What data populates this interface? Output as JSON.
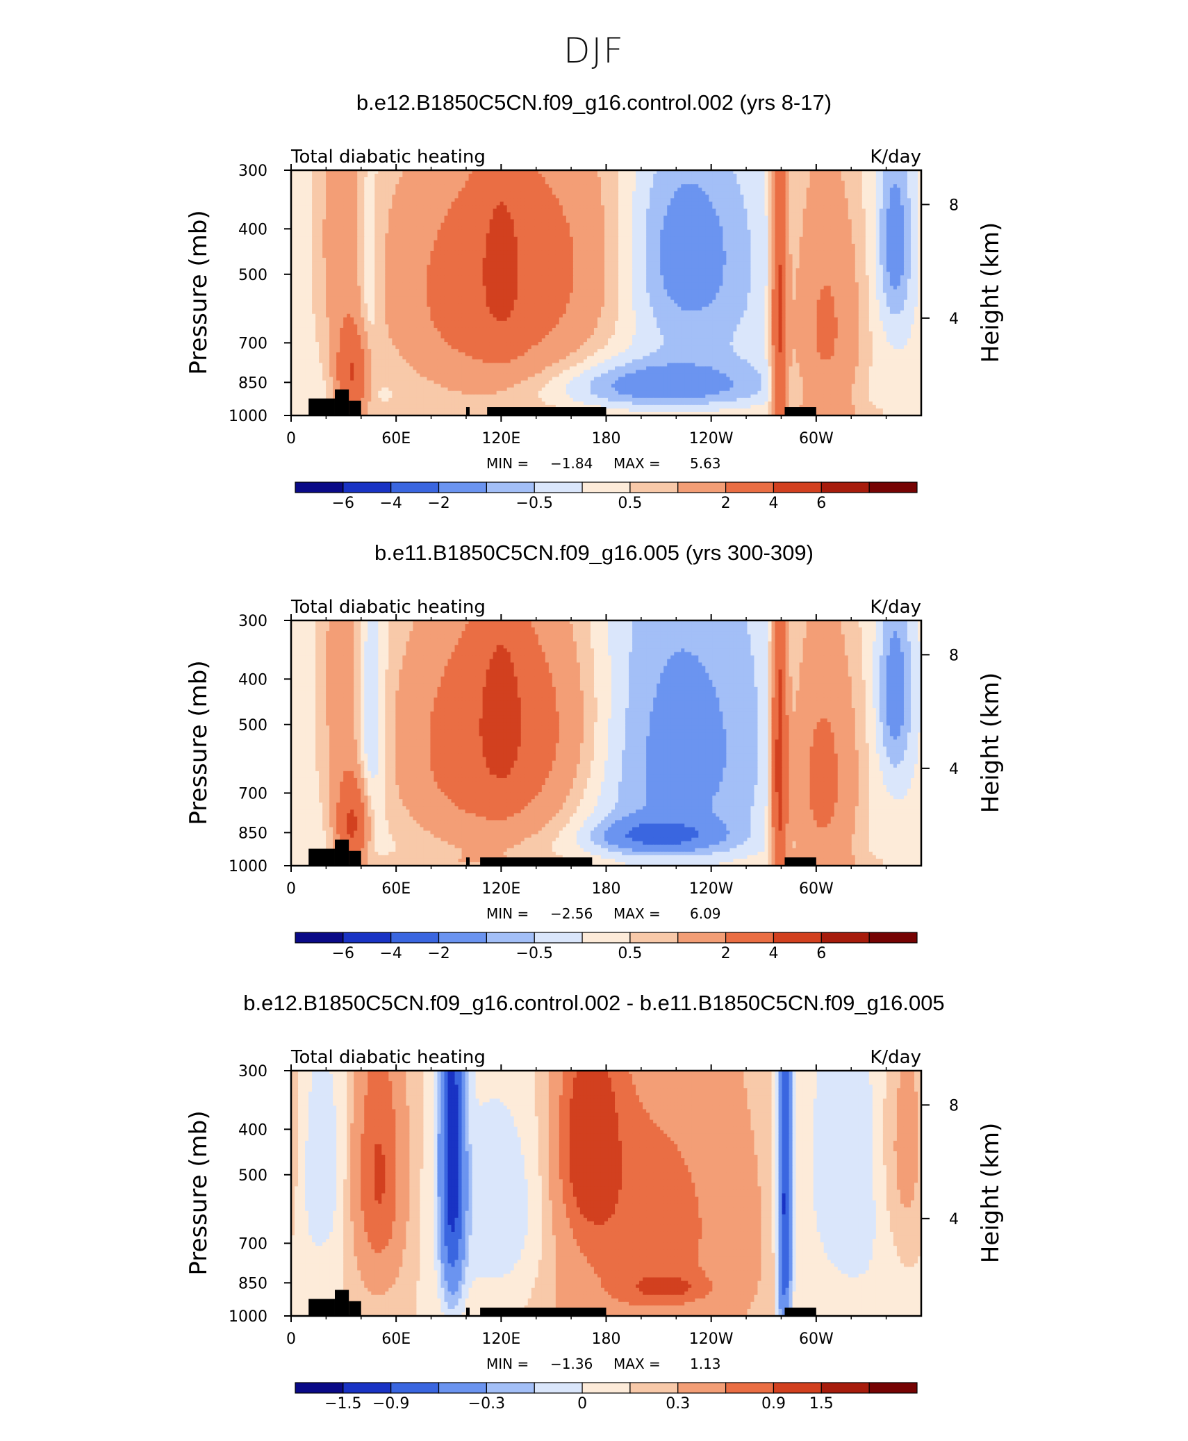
{
  "figure_title": "DJF",
  "chart_data": [
    {
      "type": "heatmap",
      "title": "b.e12.B1850C5CN.f09_g16.control.002 (yrs 8-17)",
      "variable": "Total diabatic heating",
      "units": "K/day",
      "ylabel": "Pressure (mb)",
      "y2label": "Height (km)",
      "x_ticks": [
        "0",
        "60E",
        "120E",
        "180",
        "120W",
        "60W"
      ],
      "y_ticks": [
        "300",
        "400",
        "500",
        "700",
        "850",
        "1000"
      ],
      "y2_ticks": [
        "8",
        "4"
      ],
      "min_label": "MIN =",
      "min_value": "−1.84",
      "max_label": "MAX =",
      "max_value": "5.63",
      "colorbar_labels": [
        "−6",
        "−4",
        "−2",
        "−0.5",
        "0.5",
        "2",
        "4",
        "6"
      ],
      "fields": [
        {
          "lon": 30,
          "p": 380,
          "sx": 10,
          "sy": 300,
          "v": 1.2
        },
        {
          "lon": 35,
          "p": 820,
          "sx": 6,
          "sy": 120,
          "v": 3.5
        },
        {
          "lon": 44,
          "p": 500,
          "sx": 5,
          "sy": 200,
          "v": -1.0
        },
        {
          "lon": 130,
          "p": 470,
          "sx": 50,
          "sy": 220,
          "v": 2.6
        },
        {
          "lon": 120,
          "p": 470,
          "sx": 8,
          "sy": 140,
          "v": 2.2
        },
        {
          "lon": 110,
          "p": 700,
          "sx": 35,
          "sy": 200,
          "v": 1.0
        },
        {
          "lon": 222,
          "p": 440,
          "sx": 25,
          "sy": 160,
          "v": -1.5
        },
        {
          "lon": 210,
          "p": 860,
          "sx": 40,
          "sy": 70,
          "v": -1.4
        },
        {
          "lon": 213,
          "p": 620,
          "sx": 60,
          "sy": 300,
          "v": -0.6
        },
        {
          "lon": 279,
          "p": 600,
          "sx": 3,
          "sy": 400,
          "v": 4.0
        },
        {
          "lon": 305,
          "p": 650,
          "sx": 15,
          "sy": 300,
          "v": 2.2
        },
        {
          "lon": 345,
          "p": 430,
          "sx": 7,
          "sy": 140,
          "v": -1.6
        },
        {
          "lon": 180,
          "p": 990,
          "sx": 200,
          "sy": 40,
          "v": 0.4
        }
      ],
      "terrain": [
        {
          "lon0": 10,
          "lon1": 25,
          "p": 920
        },
        {
          "lon0": 25,
          "lon1": 33,
          "p": 880
        },
        {
          "lon0": 33,
          "lon1": 40,
          "p": 930
        },
        {
          "lon0": 100,
          "lon1": 102,
          "p": 960
        },
        {
          "lon0": 112,
          "lon1": 180,
          "p": 960
        },
        {
          "lon0": 282,
          "lon1": 300,
          "p": 960
        }
      ]
    },
    {
      "type": "heatmap",
      "title": "b.e11.B1850C5CN.f09_g16.005 (yrs 300-309)",
      "variable": "Total diabatic heating",
      "units": "K/day",
      "ylabel": "Pressure (mb)",
      "y2label": "Height (km)",
      "x_ticks": [
        "0",
        "60E",
        "120E",
        "180",
        "120W",
        "60W"
      ],
      "y_ticks": [
        "300",
        "400",
        "500",
        "700",
        "850",
        "1000"
      ],
      "y2_ticks": [
        "8",
        "4"
      ],
      "min_label": "MIN =",
      "min_value": "−2.56",
      "max_label": "MAX =",
      "max_value": "6.09",
      "colorbar_labels": [
        "−6",
        "−4",
        "−2",
        "−0.5",
        "0.5",
        "2",
        "4",
        "6"
      ],
      "fields": [
        {
          "lon": 30,
          "p": 380,
          "sx": 10,
          "sy": 300,
          "v": 1.2
        },
        {
          "lon": 35,
          "p": 820,
          "sx": 6,
          "sy": 120,
          "v": 3.8
        },
        {
          "lon": 45,
          "p": 500,
          "sx": 6,
          "sy": 220,
          "v": -1.4
        },
        {
          "lon": 125,
          "p": 480,
          "sx": 40,
          "sy": 220,
          "v": 2.8
        },
        {
          "lon": 120,
          "p": 470,
          "sx": 8,
          "sy": 140,
          "v": 2.4
        },
        {
          "lon": 110,
          "p": 700,
          "sx": 35,
          "sy": 200,
          "v": 1.0
        },
        {
          "lon": 213,
          "p": 560,
          "sx": 45,
          "sy": 330,
          "v": -1.6
        },
        {
          "lon": 210,
          "p": 860,
          "sx": 22,
          "sy": 45,
          "v": -2.0
        },
        {
          "lon": 279,
          "p": 600,
          "sx": 3,
          "sy": 400,
          "v": 4.5
        },
        {
          "lon": 303,
          "p": 650,
          "sx": 15,
          "sy": 300,
          "v": 2.4
        },
        {
          "lon": 345,
          "p": 430,
          "sx": 7,
          "sy": 140,
          "v": -1.6
        },
        {
          "lon": 180,
          "p": 990,
          "sx": 200,
          "sy": 40,
          "v": 0.4
        }
      ],
      "terrain": [
        {
          "lon0": 10,
          "lon1": 25,
          "p": 920
        },
        {
          "lon0": 25,
          "lon1": 33,
          "p": 880
        },
        {
          "lon0": 33,
          "lon1": 40,
          "p": 930
        },
        {
          "lon0": 100,
          "lon1": 102,
          "p": 960
        },
        {
          "lon0": 108,
          "lon1": 172,
          "p": 960
        },
        {
          "lon0": 282,
          "lon1": 300,
          "p": 960
        }
      ]
    },
    {
      "type": "heatmap",
      "title": "b.e12.B1850C5CN.f09_g16.control.002 - b.e11.B1850C5CN.f09_g16.005",
      "variable": "Total diabatic heating",
      "units": "K/day",
      "ylabel": "Pressure (mb)",
      "y2label": "Height (km)",
      "x_ticks": [
        "0",
        "60E",
        "120E",
        "180",
        "120W",
        "60W"
      ],
      "y_ticks": [
        "300",
        "400",
        "500",
        "700",
        "850",
        "1000"
      ],
      "y2_ticks": [
        "8",
        "4"
      ],
      "min_label": "MIN =",
      "min_value": "−1.36",
      "max_label": "MAX =",
      "max_value": "1.13",
      "colorbar_labels": [
        "−1.5",
        "−0.9",
        "−0.3",
        "0",
        "0.3",
        "0.9",
        "1.5"
      ],
      "fields": [
        {
          "lon": 15,
          "p": 480,
          "sx": 12,
          "sy": 200,
          "v": -0.3
        },
        {
          "lon": 50,
          "p": 500,
          "sx": 10,
          "sy": 220,
          "v": 0.8
        },
        {
          "lon": 92,
          "p": 450,
          "sx": 5,
          "sy": 300,
          "v": -1.2
        },
        {
          "lon": 125,
          "p": 600,
          "sx": 25,
          "sy": 250,
          "v": -0.4
        },
        {
          "lon": 170,
          "p": 420,
          "sx": 12,
          "sy": 150,
          "v": 0.9
        },
        {
          "lon": 200,
          "p": 650,
          "sx": 45,
          "sy": 350,
          "v": 0.6
        },
        {
          "lon": 215,
          "p": 870,
          "sx": 15,
          "sy": 40,
          "v": 0.5
        },
        {
          "lon": 282,
          "p": 600,
          "sx": 3,
          "sy": 400,
          "v": -1.1
        },
        {
          "lon": 320,
          "p": 500,
          "sx": 25,
          "sy": 300,
          "v": -0.3
        },
        {
          "lon": 352,
          "p": 450,
          "sx": 12,
          "sy": 200,
          "v": 0.4
        }
      ],
      "terrain": [
        {
          "lon0": 10,
          "lon1": 25,
          "p": 920
        },
        {
          "lon0": 25,
          "lon1": 33,
          "p": 880
        },
        {
          "lon0": 33,
          "lon1": 40,
          "p": 930
        },
        {
          "lon0": 100,
          "lon1": 102,
          "p": 960
        },
        {
          "lon0": 108,
          "lon1": 180,
          "p": 960
        },
        {
          "lon0": 282,
          "lon1": 300,
          "p": 960
        }
      ]
    }
  ]
}
